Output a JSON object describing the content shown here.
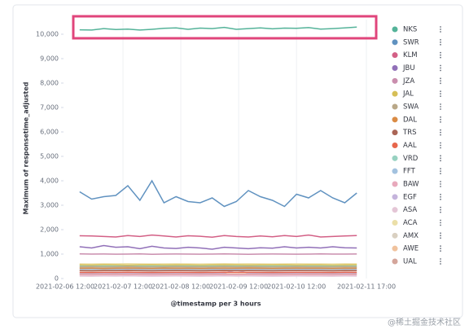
{
  "chart_data": {
    "type": "line",
    "y_axis_label": "Maximum of responsetime_adjusted",
    "x_axis_label": "@timestamp per 3 hours",
    "watermark": "@稀土掘金技术社区",
    "grid": "x",
    "legend": "right",
    "xlim": [
      "2021-02-06 12:00",
      "2021-02-11 17:00"
    ],
    "xticks": [
      "2021-02-06 12:00",
      "2021-02-07 12:00",
      "2021-02-08 12:00",
      "2021-02-09 12:00",
      "2021-02-10 12:00",
      "2021-02-11 17:00"
    ],
    "ylim": [
      0,
      10600
    ],
    "yticks": [
      0,
      {
        "value": 1000,
        "label": "1,000"
      },
      {
        "value": 2000,
        "label": "2,000"
      },
      {
        "value": 3000,
        "label": "3,000"
      },
      {
        "value": 4000,
        "label": "4,000"
      },
      {
        "value": 5000,
        "label": "5,000"
      },
      {
        "value": 6000,
        "label": "6,000"
      },
      {
        "value": 7000,
        "label": "7,000"
      },
      {
        "value": 8000,
        "label": "8,000"
      },
      {
        "value": 9000,
        "label": "9,000"
      },
      {
        "value": 10000,
        "label": "10,000"
      }
    ],
    "x": [
      "2021-02-06 18:00",
      "2021-02-06 23:00",
      "2021-02-07 04:00",
      "2021-02-07 09:00",
      "2021-02-07 14:00",
      "2021-02-07 19:00",
      "2021-02-08 00:00",
      "2021-02-08 05:00",
      "2021-02-08 10:00",
      "2021-02-08 15:00",
      "2021-02-08 20:00",
      "2021-02-09 01:00",
      "2021-02-09 06:00",
      "2021-02-09 11:00",
      "2021-02-09 16:00",
      "2021-02-09 21:00",
      "2021-02-10 02:00",
      "2021-02-10 07:00",
      "2021-02-10 12:00",
      "2021-02-10 17:00",
      "2021-02-10 22:00",
      "2021-02-11 03:00",
      "2021-02-11 08:00",
      "2021-02-11 13:00"
    ],
    "series": [
      {
        "name": "NKS",
        "color": "#54b399",
        "values": [
          10180,
          10170,
          10230,
          10190,
          10210,
          10170,
          10200,
          10240,
          10260,
          10200,
          10250,
          10230,
          10280,
          10200,
          10230,
          10260,
          10220,
          10250,
          10240,
          10270,
          10210,
          10230,
          10260,
          10290
        ]
      },
      {
        "name": "SWR",
        "color": "#6092c0",
        "values": [
          3550,
          3250,
          3350,
          3400,
          3800,
          3200,
          4000,
          3100,
          3350,
          3150,
          3100,
          3300,
          2950,
          3150,
          3600,
          3350,
          3200,
          2950,
          3450,
          3300,
          3600,
          3300,
          3100,
          3500
        ]
      },
      {
        "name": "KLM",
        "color": "#d36086",
        "values": [
          1750,
          1740,
          1720,
          1700,
          1760,
          1720,
          1780,
          1740,
          1700,
          1750,
          1730,
          1690,
          1760,
          1720,
          1700,
          1740,
          1710,
          1760,
          1720,
          1780,
          1700,
          1720,
          1740,
          1760
        ]
      },
      {
        "name": "JBU",
        "color": "#9170b8",
        "values": [
          1300,
          1250,
          1350,
          1280,
          1300,
          1220,
          1320,
          1250,
          1230,
          1280,
          1250,
          1200,
          1280,
          1250,
          1220,
          1260,
          1240,
          1300,
          1250,
          1280,
          1250,
          1300,
          1260,
          1250
        ]
      },
      {
        "name": "JZA",
        "color": "#ca8eae",
        "values": [
          1010,
          1000,
          1005,
          995,
          1000,
          1010,
          990,
          1000,
          1005,
          1000,
          995,
          1000,
          1010,
          1000,
          990,
          1000,
          1005,
          1000,
          995,
          1000,
          1010,
          1000,
          1000,
          1005
        ]
      },
      {
        "name": "JAL",
        "color": "#d6bf57",
        "values": [
          560,
          555,
          565,
          560,
          550,
          560,
          565,
          555,
          560,
          560,
          550,
          560,
          565,
          560,
          555,
          560,
          560,
          565,
          555,
          560,
          560,
          550,
          560,
          565
        ]
      },
      {
        "name": "SWA",
        "color": "#b9a888",
        "values": [
          480,
          485,
          475,
          480,
          490,
          480,
          475,
          480,
          485,
          480,
          475,
          480,
          490,
          480,
          485,
          480,
          475,
          480,
          485,
          480,
          480,
          475,
          485,
          480
        ]
      },
      {
        "name": "DAL",
        "color": "#da8b45",
        "values": [
          420,
          425,
          415,
          420,
          430,
          420,
          415,
          425,
          420,
          420,
          415,
          420,
          425,
          420,
          430,
          420,
          415,
          420,
          425,
          420,
          420,
          415,
          425,
          420
        ]
      },
      {
        "name": "TRS",
        "color": "#aa6556",
        "values": [
          320,
          315,
          325,
          320,
          330,
          320,
          315,
          320,
          325,
          320,
          315,
          320,
          330,
          320,
          325,
          320,
          315,
          320,
          325,
          320,
          320,
          315,
          325,
          320
        ]
      },
      {
        "name": "AAL",
        "color": "#e7664c",
        "values": [
          250,
          245,
          255,
          250,
          260,
          250,
          245,
          250,
          255,
          250,
          245,
          250,
          260,
          250,
          255,
          250,
          245,
          250,
          255,
          250,
          250,
          245,
          255,
          250
        ]
      },
      {
        "name": "VRD",
        "color": "#98d2c1",
        "values": [
          520,
          515,
          525,
          520,
          530,
          520,
          515,
          520,
          525,
          520,
          515,
          520,
          530,
          520,
          525,
          520,
          515,
          520,
          525,
          520,
          520,
          515,
          525,
          520
        ]
      },
      {
        "name": "FFT",
        "color": "#a3c2df",
        "values": [
          380,
          375,
          385,
          380,
          390,
          380,
          375,
          380,
          385,
          380,
          375,
          380,
          390,
          380,
          385,
          380,
          375,
          380,
          385,
          380,
          380,
          375,
          385,
          380
        ]
      },
      {
        "name": "BAW",
        "color": "#e8a9bc",
        "values": [
          150,
          145,
          155,
          150,
          160,
          150,
          145,
          150,
          155,
          150,
          145,
          150,
          160,
          150,
          155,
          150,
          145,
          150,
          155,
          150,
          150,
          145,
          155,
          150
        ]
      },
      {
        "name": "EGF",
        "color": "#c5b4dc",
        "values": [
          220,
          215,
          225,
          220,
          230,
          220,
          215,
          220,
          225,
          220,
          215,
          220,
          230,
          350,
          225,
          220,
          215,
          220,
          225,
          220,
          220,
          215,
          225,
          220
        ]
      },
      {
        "name": "ASA",
        "color": "#e4c6d6",
        "values": [
          100,
          95,
          105,
          100,
          110,
          100,
          95,
          100,
          105,
          100,
          95,
          100,
          110,
          100,
          105,
          100,
          95,
          100,
          105,
          100,
          100,
          95,
          105,
          100
        ]
      },
      {
        "name": "ACA",
        "color": "#ebdfa8",
        "values": [
          600,
          595,
          605,
          600,
          610,
          600,
          595,
          600,
          605,
          600,
          595,
          600,
          610,
          600,
          605,
          600,
          595,
          600,
          605,
          600,
          600,
          595,
          605,
          600
        ]
      },
      {
        "name": "AMX",
        "color": "#d9d0c1",
        "values": [
          450,
          445,
          455,
          450,
          460,
          450,
          445,
          450,
          455,
          450,
          445,
          450,
          460,
          450,
          455,
          450,
          445,
          450,
          455,
          450,
          450,
          445,
          455,
          450
        ]
      },
      {
        "name": "AWE",
        "color": "#f0c29d",
        "values": [
          350,
          345,
          355,
          350,
          360,
          350,
          345,
          350,
          355,
          350,
          345,
          350,
          360,
          350,
          355,
          350,
          345,
          350,
          355,
          350,
          350,
          345,
          355,
          350
        ]
      },
      {
        "name": "UAL",
        "color": "#d4a59b",
        "values": [
          180,
          175,
          185,
          180,
          190,
          180,
          175,
          180,
          185,
          180,
          175,
          180,
          190,
          180,
          185,
          180,
          175,
          180,
          185,
          180,
          180,
          175,
          185,
          180
        ]
      }
    ]
  }
}
